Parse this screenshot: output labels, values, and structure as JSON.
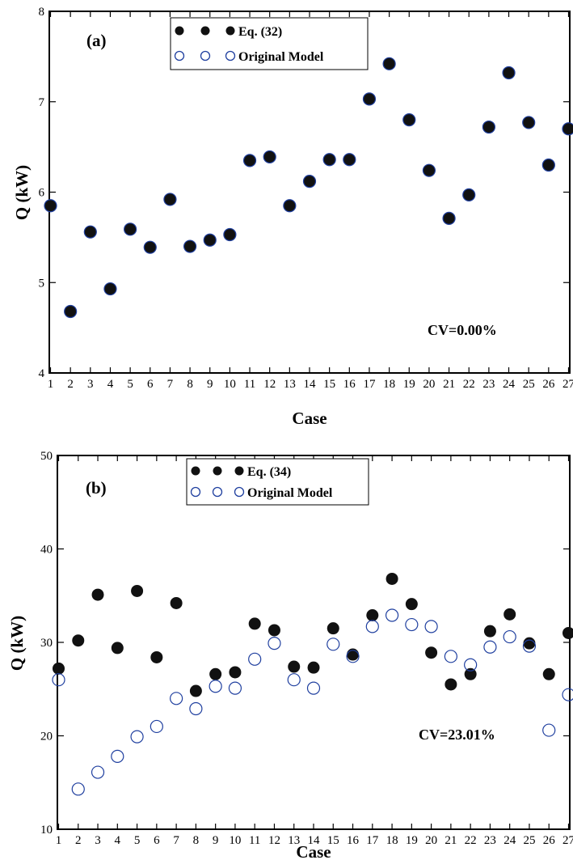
{
  "chart_data": [
    {
      "type": "scatter",
      "panel_label": "(a)",
      "xlabel": "Case",
      "ylabel": "Q (kW)",
      "xlim": [
        1,
        27
      ],
      "ylim": [
        4,
        8
      ],
      "yticks": [
        4,
        5,
        6,
        7,
        8
      ],
      "x": [
        1,
        2,
        3,
        4,
        5,
        6,
        7,
        8,
        9,
        10,
        11,
        12,
        13,
        14,
        15,
        16,
        17,
        18,
        19,
        20,
        21,
        22,
        23,
        24,
        25,
        26,
        27
      ],
      "series": [
        {
          "name": "Eq. (32)",
          "marker": "filled-circle",
          "color": "#111111",
          "values": [
            5.85,
            4.68,
            5.56,
            4.93,
            5.59,
            5.39,
            5.92,
            5.4,
            5.47,
            5.53,
            6.35,
            6.39,
            5.85,
            6.12,
            6.36,
            6.36,
            7.03,
            7.42,
            6.8,
            6.24,
            5.71,
            5.97,
            6.72,
            7.32,
            6.77,
            6.3,
            6.7
          ]
        },
        {
          "name": "Original Model",
          "marker": "open-circle",
          "color": "#1f3f9f",
          "values": [
            5.85,
            4.68,
            5.56,
            4.93,
            5.59,
            5.39,
            5.92,
            5.4,
            5.47,
            5.53,
            6.35,
            6.39,
            5.85,
            6.12,
            6.36,
            6.36,
            7.03,
            7.42,
            6.8,
            6.24,
            5.71,
            5.97,
            6.72,
            7.32,
            6.77,
            6.3,
            6.7
          ]
        }
      ],
      "legend_location": "top",
      "annotation": "CV=0.00%"
    },
    {
      "type": "scatter",
      "panel_label": "(b)",
      "xlabel": "Case",
      "ylabel": "Q (kW)",
      "xlim": [
        1,
        27
      ],
      "ylim": [
        10,
        50
      ],
      "yticks": [
        10,
        20,
        30,
        40,
        50
      ],
      "x": [
        1,
        2,
        3,
        4,
        5,
        6,
        7,
        8,
        9,
        10,
        11,
        12,
        13,
        14,
        15,
        16,
        17,
        18,
        19,
        20,
        21,
        22,
        23,
        24,
        25,
        26,
        27
      ],
      "series": [
        {
          "name": "Eq. (34)",
          "marker": "filled-circle",
          "color": "#111111",
          "values": [
            27.2,
            30.2,
            35.1,
            29.4,
            35.5,
            28.4,
            34.2,
            24.8,
            26.6,
            26.8,
            32.0,
            31.3,
            27.4,
            27.3,
            31.5,
            28.7,
            32.9,
            36.8,
            34.1,
            28.9,
            25.5,
            26.6,
            31.2,
            33.0,
            29.9,
            26.6,
            31.0
          ]
        },
        {
          "name": "Original Model",
          "marker": "open-circle",
          "color": "#1f3f9f",
          "values": [
            26.0,
            14.3,
            16.1,
            17.8,
            19.9,
            21.0,
            24.0,
            22.9,
            25.3,
            25.1,
            28.2,
            29.9,
            26.0,
            25.1,
            29.8,
            28.5,
            31.7,
            32.9,
            31.9,
            31.7,
            28.5,
            27.6,
            29.5,
            30.6,
            29.6,
            20.6,
            24.4
          ]
        }
      ],
      "legend_location": "top",
      "annotation": "CV=23.01%"
    }
  ]
}
